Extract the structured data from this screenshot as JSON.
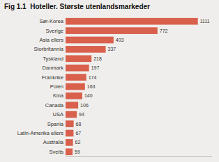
{
  "chart_data": {
    "type": "bar",
    "orientation": "horizontal",
    "title": "Fig 1.1  Hoteller. Største utenlandsmarkeder",
    "categories": [
      "Sveits",
      "Australia",
      "Latin-Amerika ellers",
      "Spania",
      "USA",
      "Canada",
      "Kina",
      "Polen",
      "Frankrike",
      "Danmark",
      "Tyskland",
      "Storbritannia",
      "Asia ellers",
      "Sverige",
      "Sør-Korea"
    ],
    "values": [
      59,
      62,
      67,
      68,
      94,
      106,
      140,
      163,
      174,
      197,
      218,
      337,
      403,
      772,
      1111
    ],
    "color": "#d9604c",
    "xlim": [
      0,
      1230
    ],
    "data_labels": true,
    "tick_labels": "y",
    "grid": false
  }
}
